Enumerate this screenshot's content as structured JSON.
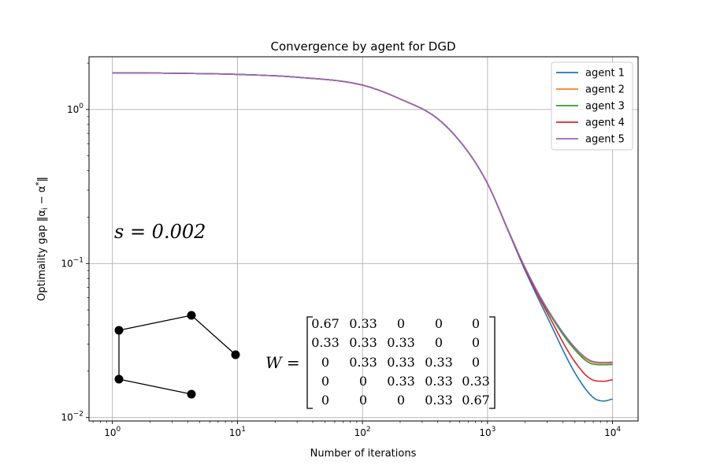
{
  "chart_data": {
    "type": "line",
    "title": "Convergence by agent for DGD",
    "xlabel": "Number of iterations",
    "ylabel": "Optimality gap ‖α_i − α*‖",
    "xscale": "log",
    "yscale": "log",
    "xlim": [
      0.65,
      16000
    ],
    "ylim": [
      0.0095,
      2.2
    ],
    "grid": true,
    "legend": "top-right",
    "xticks": [
      {
        "value": 1,
        "base": "10",
        "exp": "0"
      },
      {
        "value": 10,
        "base": "10",
        "exp": "1"
      },
      {
        "value": 100,
        "base": "10",
        "exp": "2"
      },
      {
        "value": 1000,
        "base": "10",
        "exp": "3"
      },
      {
        "value": 10000,
        "base": "10",
        "exp": "4"
      }
    ],
    "yticks": [
      {
        "value": 0.01,
        "base": "10",
        "exp": "−2"
      },
      {
        "value": 0.1,
        "base": "10",
        "exp": "−1"
      },
      {
        "value": 1,
        "base": "10",
        "exp": "0"
      }
    ],
    "x": [
      1,
      3,
      10,
      30,
      100,
      200,
      400,
      700,
      1000,
      1500,
      2000,
      3000,
      5000,
      7000,
      8500,
      10000
    ],
    "series": [
      {
        "name": "agent 1",
        "color": "#1f77b4",
        "values": [
          1.73,
          1.72,
          1.69,
          1.62,
          1.44,
          1.17,
          0.87,
          0.53,
          0.33,
          0.155,
          0.09,
          0.045,
          0.0195,
          0.0135,
          0.0128,
          0.0132
        ]
      },
      {
        "name": "agent 2",
        "color": "#ff7f0e",
        "values": [
          1.73,
          1.72,
          1.69,
          1.62,
          1.44,
          1.17,
          0.87,
          0.53,
          0.33,
          0.157,
          0.093,
          0.05,
          0.028,
          0.0228,
          0.0225,
          0.0226
        ]
      },
      {
        "name": "agent 3",
        "color": "#2ca02c",
        "values": [
          1.73,
          1.72,
          1.69,
          1.62,
          1.44,
          1.17,
          0.87,
          0.53,
          0.33,
          0.157,
          0.093,
          0.05,
          0.0275,
          0.0222,
          0.022,
          0.0221
        ]
      },
      {
        "name": "agent 4",
        "color": "#d62728",
        "values": [
          1.73,
          1.72,
          1.69,
          1.62,
          1.44,
          1.17,
          0.87,
          0.53,
          0.33,
          0.156,
          0.092,
          0.048,
          0.023,
          0.0175,
          0.0172,
          0.0176
        ]
      },
      {
        "name": "agent 5",
        "color": "#9467bd",
        "values": [
          1.73,
          1.72,
          1.69,
          1.62,
          1.44,
          1.17,
          0.87,
          0.53,
          0.33,
          0.157,
          0.094,
          0.051,
          0.0285,
          0.0231,
          0.0228,
          0.0229
        ]
      }
    ],
    "annotation": "s = 0.002",
    "matrix": {
      "lhs": "W =",
      "rows": [
        [
          "0.67",
          "0.33",
          "0",
          "0",
          "0"
        ],
        [
          "0.33",
          "0.33",
          "0.33",
          "0",
          "0"
        ],
        [
          "0",
          "0.33",
          "0.33",
          "0.33",
          "0"
        ],
        [
          "0",
          "0",
          "0.33",
          "0.33",
          "0.33"
        ],
        [
          "0",
          "0",
          "0",
          "0.33",
          "0.67"
        ]
      ]
    },
    "graph_inset": {
      "edges": [
        [
          0,
          1
        ],
        [
          1,
          2
        ],
        [
          0,
          3
        ],
        [
          3,
          4
        ]
      ]
    }
  }
}
